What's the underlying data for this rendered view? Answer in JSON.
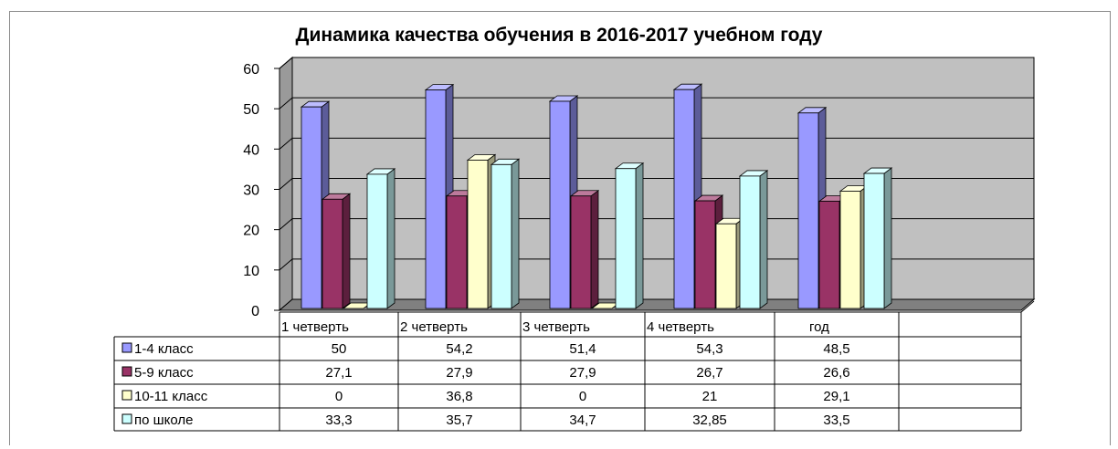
{
  "chart_data": {
    "type": "bar",
    "title": "Динамика качества обучения в 2016-2017 учебном году",
    "categories": [
      "1 четверть",
      "2 четверть",
      "3 четверть",
      "4 четверть",
      "год"
    ],
    "ylim": [
      0,
      60
    ],
    "yticks": [
      "0",
      "10",
      "20",
      "30",
      "40",
      "50",
      "60"
    ],
    "grid": true,
    "legend_position": "table-left",
    "series": [
      {
        "name": "1-4 класс",
        "values": [
          50,
          54.2,
          51.4,
          54.3,
          48.5
        ],
        "labels": [
          "50",
          "54,2",
          "51,4",
          "54,3",
          "48,5"
        ],
        "color": "#9999ff"
      },
      {
        "name": "5-9 класс",
        "values": [
          27.1,
          27.9,
          27.9,
          26.7,
          26.6
        ],
        "labels": [
          "27,1",
          "27,9",
          "27,9",
          "26,7",
          "26,6"
        ],
        "color": "#993366"
      },
      {
        "name": "10-11 класс",
        "values": [
          0,
          36.8,
          0,
          21,
          29.1
        ],
        "labels": [
          "0",
          "36,8",
          "0",
          "21",
          "29,1"
        ],
        "color": "#ffffcc"
      },
      {
        "name": "по школе",
        "values": [
          33.3,
          35.7,
          34.7,
          32.85,
          33.5
        ],
        "labels": [
          "33,3",
          "35,7",
          "34,7",
          "32,85",
          "33,5"
        ],
        "color": "#ccffff"
      }
    ],
    "wall_color": "#c0c0c0"
  }
}
